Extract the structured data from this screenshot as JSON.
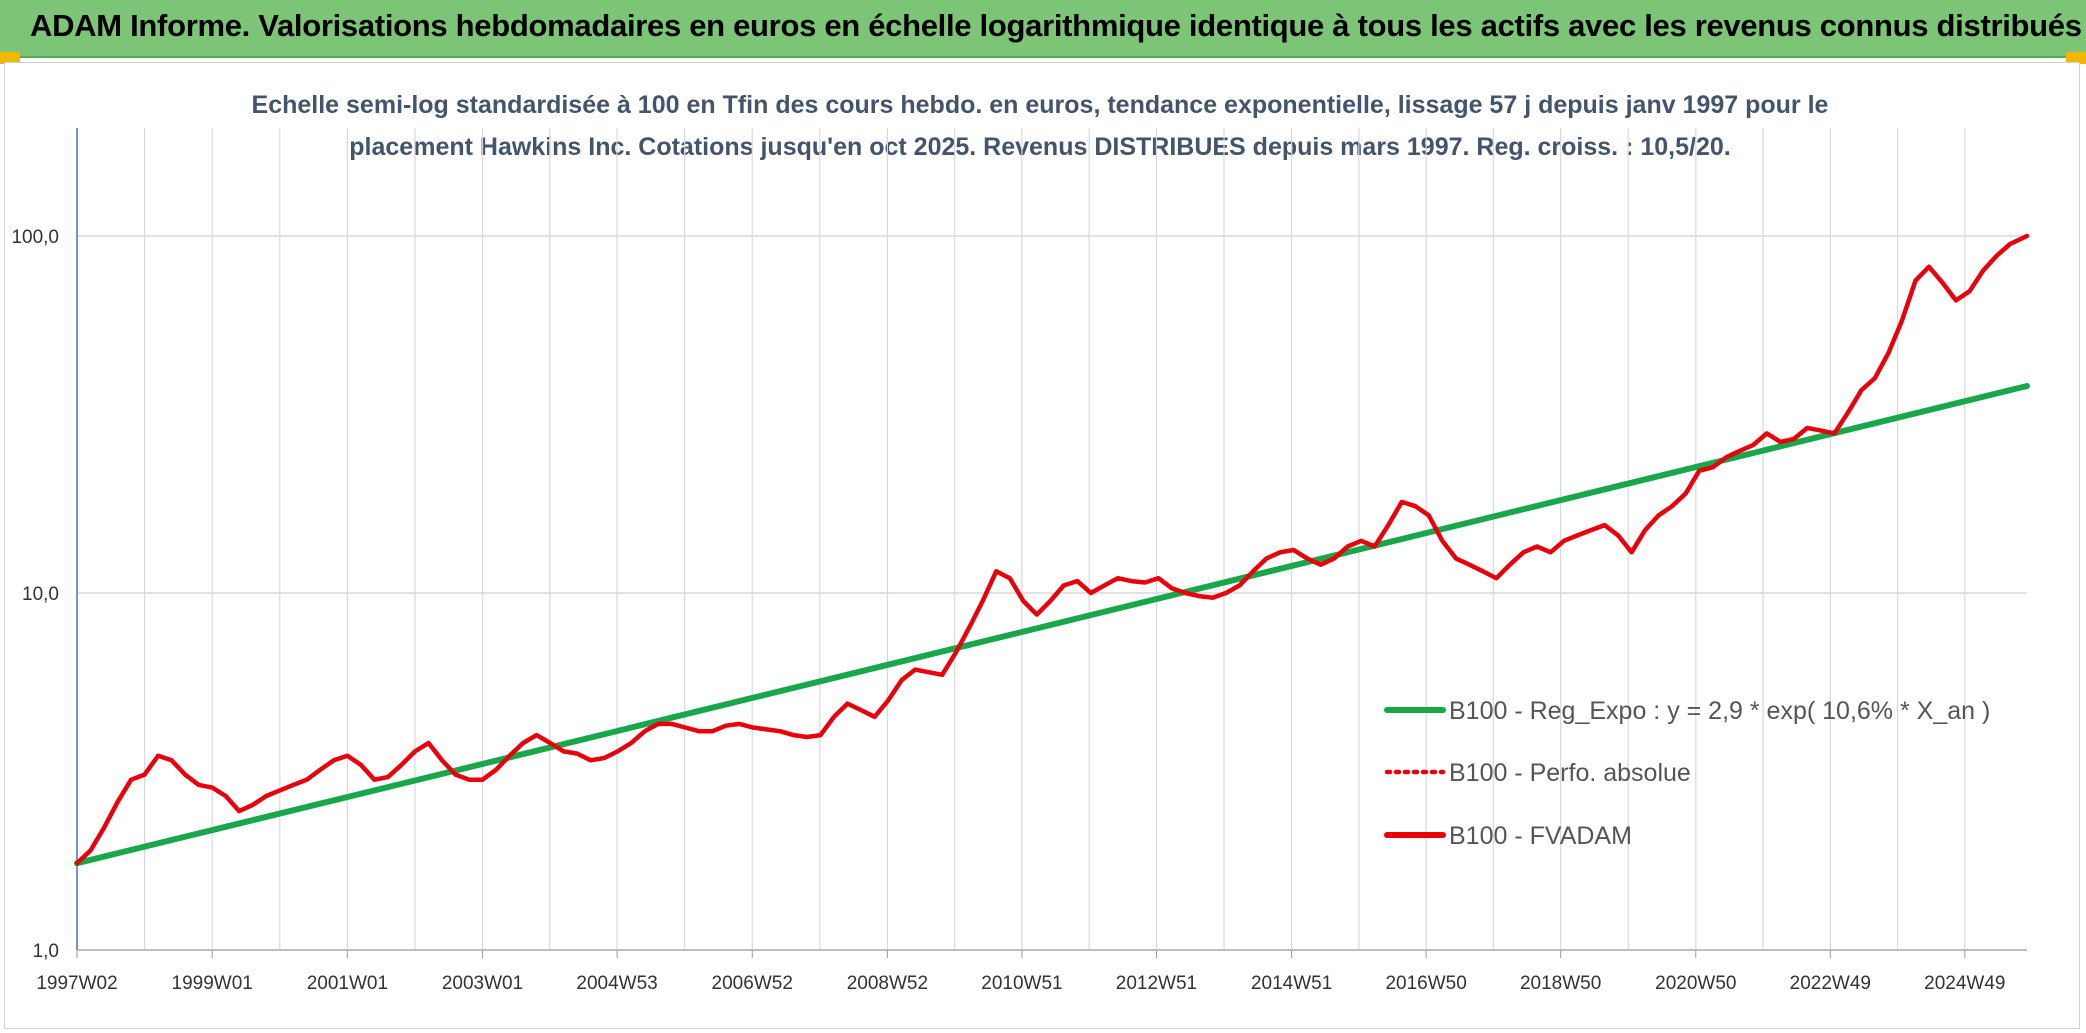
{
  "header": {
    "banner_title": "ADAM Informe. Valorisations hebdomadaires en euros en échelle logarithmique identique à tous les actifs avec les revenus connus distribués"
  },
  "colors": {
    "banner": "#7cc576",
    "regression": "#1aa64b",
    "fvadam": "#e8000b",
    "title": "#44546a",
    "grid": "#d9d9d9"
  },
  "chart_data": {
    "type": "line",
    "title_lines": [
      "Echelle semi-log standardisée à 100 en Tfin des cours hebdo. en euros, tendance exponentielle, lissage 57 j depuis janv 1997 pour le",
      "placement Hawkins Inc. Cotations jusqu'en oct 2025. Revenus DISTRIBUES depuis mars 1997. Reg. croiss. : 10,5/20."
    ],
    "y_scale": "log",
    "ylim": [
      1,
      100
    ],
    "y_ticks": [
      "1,0",
      "10,0",
      "100,0"
    ],
    "xlim": [
      1997.0,
      2025.85
    ],
    "x_ticks": [
      {
        "label": "1997W02",
        "t": 1997.0
      },
      {
        "label": "1999W01",
        "t": 1999.0
      },
      {
        "label": "2001W01",
        "t": 2001.0
      },
      {
        "label": "2003W01",
        "t": 2003.0
      },
      {
        "label": "2004W53",
        "t": 2004.99
      },
      {
        "label": "2006W52",
        "t": 2006.99
      },
      {
        "label": "2008W52",
        "t": 2008.99
      },
      {
        "label": "2010W51",
        "t": 2010.98
      },
      {
        "label": "2012W51",
        "t": 2012.97
      },
      {
        "label": "2014W51",
        "t": 2014.97
      },
      {
        "label": "2016W50",
        "t": 2016.96
      },
      {
        "label": "2018W50",
        "t": 2018.95
      },
      {
        "label": "2020W50",
        "t": 2020.95
      },
      {
        "label": "2022W49",
        "t": 2022.94
      },
      {
        "label": "2024W49",
        "t": 2024.93
      }
    ],
    "grid": true,
    "legend_position": "right",
    "series": [
      {
        "name": "B100 - Reg_Expo : y = 2,9 * exp( 10,6% *  X_an )",
        "style": "solid",
        "color": "#1aa64b",
        "x": [
          1997.0,
          2025.85
        ],
        "y": [
          1.75,
          38.0
        ]
      },
      {
        "name": "B100 - Perfo. absolue",
        "style": "dotted",
        "color": "#e8000b",
        "x": [],
        "y": []
      },
      {
        "name": "B100 - FVADAM",
        "style": "solid",
        "color": "#e8000b",
        "x": [
          1997.0,
          1997.2,
          1997.4,
          1997.6,
          1997.8,
          1998.0,
          1998.2,
          1998.4,
          1998.6,
          1998.8,
          1999.0,
          1999.2,
          1999.4,
          1999.6,
          1999.8,
          2000.0,
          2000.2,
          2000.4,
          2000.6,
          2000.8,
          2001.0,
          2001.2,
          2001.4,
          2001.6,
          2001.8,
          2002.0,
          2002.2,
          2002.4,
          2002.6,
          2002.8,
          2003.0,
          2003.2,
          2003.4,
          2003.6,
          2003.8,
          2004.0,
          2004.2,
          2004.4,
          2004.6,
          2004.8,
          2005.0,
          2005.2,
          2005.4,
          2005.6,
          2005.8,
          2006.0,
          2006.2,
          2006.4,
          2006.6,
          2006.8,
          2007.0,
          2007.2,
          2007.4,
          2007.6,
          2007.8,
          2008.0,
          2008.2,
          2008.4,
          2008.6,
          2008.8,
          2009.0,
          2009.2,
          2009.4,
          2009.6,
          2009.8,
          2010.0,
          2010.2,
          2010.4,
          2010.6,
          2010.8,
          2011.0,
          2011.2,
          2011.4,
          2011.6,
          2011.8,
          2012.0,
          2012.2,
          2012.4,
          2012.6,
          2012.8,
          2013.0,
          2013.2,
          2013.4,
          2013.6,
          2013.8,
          2014.0,
          2014.2,
          2014.4,
          2014.6,
          2014.8,
          2015.0,
          2015.2,
          2015.4,
          2015.6,
          2015.8,
          2016.0,
          2016.2,
          2016.4,
          2016.6,
          2016.8,
          2017.0,
          2017.2,
          2017.4,
          2017.6,
          2017.8,
          2018.0,
          2018.2,
          2018.4,
          2018.6,
          2018.8,
          2019.0,
          2019.2,
          2019.4,
          2019.6,
          2019.8,
          2020.0,
          2020.2,
          2020.4,
          2020.6,
          2020.8,
          2021.0,
          2021.2,
          2021.4,
          2021.6,
          2021.8,
          2022.0,
          2022.2,
          2022.4,
          2022.6,
          2022.8,
          2023.0,
          2023.2,
          2023.4,
          2023.6,
          2023.8,
          2024.0,
          2024.2,
          2024.4,
          2024.6,
          2024.8,
          2025.0,
          2025.2,
          2025.4,
          2025.6,
          2025.85
        ],
        "y": [
          1.75,
          1.9,
          2.2,
          2.6,
          3.0,
          3.1,
          3.5,
          3.4,
          3.1,
          2.9,
          2.85,
          2.7,
          2.45,
          2.55,
          2.7,
          2.8,
          2.9,
          3.0,
          3.2,
          3.4,
          3.5,
          3.3,
          3.0,
          3.05,
          3.3,
          3.6,
          3.8,
          3.4,
          3.1,
          3.0,
          3.0,
          3.2,
          3.5,
          3.8,
          4.0,
          3.8,
          3.6,
          3.55,
          3.4,
          3.45,
          3.6,
          3.8,
          4.1,
          4.3,
          4.3,
          4.2,
          4.1,
          4.1,
          4.25,
          4.3,
          4.2,
          4.15,
          4.1,
          4.0,
          3.95,
          4.0,
          4.5,
          4.9,
          4.7,
          4.5,
          5.0,
          5.7,
          6.1,
          6.0,
          5.9,
          6.8,
          8.0,
          9.5,
          11.5,
          11.0,
          9.5,
          8.7,
          9.5,
          10.5,
          10.8,
          10.0,
          10.5,
          11.0,
          10.8,
          10.7,
          11.0,
          10.3,
          10.0,
          9.8,
          9.7,
          10.0,
          10.5,
          11.5,
          12.5,
          13.0,
          13.2,
          12.5,
          12.0,
          12.5,
          13.5,
          14.0,
          13.5,
          15.5,
          18.0,
          17.5,
          16.5,
          14.0,
          12.5,
          12.0,
          11.5,
          11.0,
          12.0,
          13.0,
          13.5,
          13.0,
          14.0,
          14.5,
          15.0,
          15.5,
          14.5,
          13.0,
          15.0,
          16.5,
          17.5,
          19.0,
          22.0,
          22.5,
          24.0,
          25.0,
          26.0,
          28.0,
          26.5,
          27.0,
          29.0,
          28.5,
          28.0,
          32.0,
          37.0,
          40.0,
          47.0,
          58.0,
          75.0,
          82.0,
          74.0,
          66.0,
          70.0,
          80.0,
          88.0,
          95.0,
          100.0
        ]
      }
    ]
  }
}
